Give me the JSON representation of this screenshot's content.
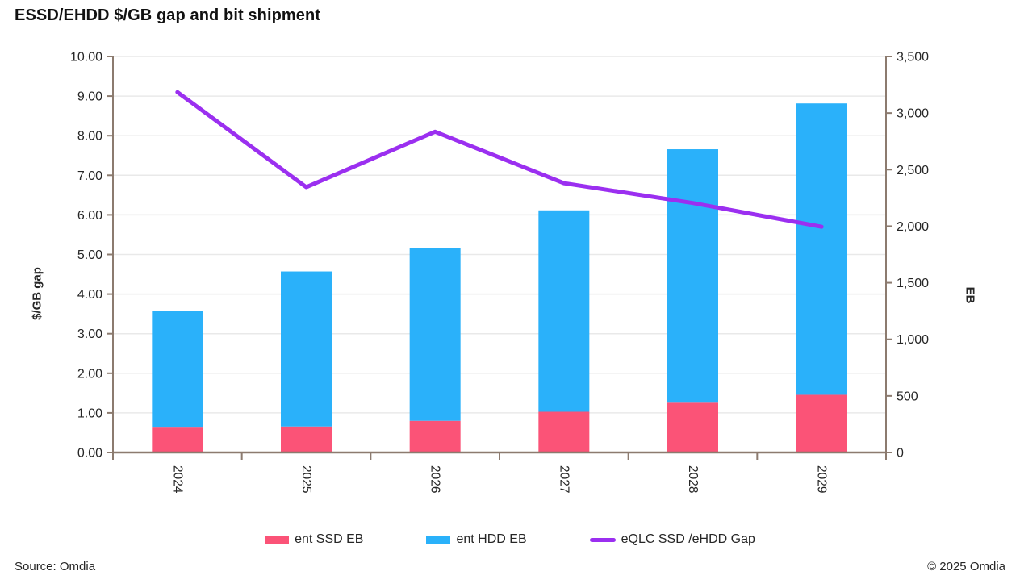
{
  "title": "ESSD/EHDD $/GB gap and bit shipment",
  "footer": {
    "source": "Source: Omdia",
    "copyright": "© 2025 Omdia"
  },
  "colors": {
    "ssd_pink": "#FB5377",
    "hdd_blue": "#2AB1FA",
    "gap_purple": "#9B2FF0",
    "axis_line": "#8C7B6F",
    "gridline": "#E9E9E9",
    "text": "#262626"
  },
  "legend": [
    {
      "label": "ent SSD EB",
      "swatch": "bar",
      "color": "#FB5377"
    },
    {
      "label": "ent HDD EB",
      "swatch": "bar",
      "color": "#2AB1FA"
    },
    {
      "label": "eQLC SSD /eHDD Gap",
      "swatch": "line",
      "color": "#9B2FF0"
    }
  ],
  "chart_data": {
    "type": "bar",
    "subtype": "stacked-bars-with-line-combo",
    "title": "ESSD/EHDD $/GB gap and bit shipment",
    "categories": [
      "2024",
      "2025",
      "2026",
      "2027",
      "2028",
      "2029"
    ],
    "series": [
      {
        "name": "ent SSD EB",
        "type": "bar",
        "stack": true,
        "axis": "right",
        "color": "#FB5377",
        "values": [
          220,
          230,
          280,
          360,
          440,
          510
        ]
      },
      {
        "name": "ent HDD EB",
        "type": "bar",
        "stack": true,
        "axis": "right",
        "color": "#2AB1FA",
        "values": [
          1030,
          1370,
          1525,
          1780,
          2240,
          2575
        ]
      },
      {
        "name": "eQLC SSD /eHDD Gap",
        "type": "line",
        "axis": "left",
        "color": "#9B2FF0",
        "values": [
          9.1,
          6.7,
          8.1,
          6.8,
          6.3,
          5.7
        ]
      }
    ],
    "stacked_totals_eb": [
      1250,
      1600,
      1805,
      2140,
      2680,
      3085
    ],
    "left_axis": {
      "label": "$/GB gap",
      "min": 0,
      "max": 10,
      "step": 1
    },
    "right_axis": {
      "label": "EB",
      "min": 0,
      "max": 3500,
      "step": 500
    },
    "left_ticks": [
      "0.00",
      "1.00",
      "2.00",
      "3.00",
      "4.00",
      "5.00",
      "6.00",
      "7.00",
      "8.00",
      "9.00",
      "10.00"
    ],
    "right_ticks": [
      "0",
      "500",
      "1,000",
      "1,500",
      "2,000",
      "2,500",
      "3,000",
      "3,500"
    ],
    "grid": true,
    "legend_position": "bottom"
  }
}
